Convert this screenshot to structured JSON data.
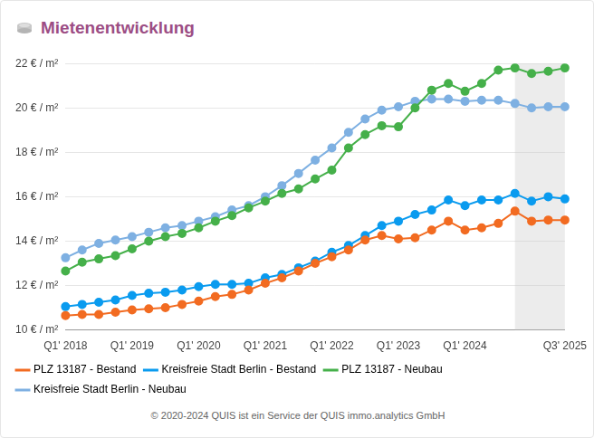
{
  "chart_data": {
    "type": "line",
    "title": "Mietenentwicklung",
    "caption": "© 2020-2024 QUIS ist ein Service der QUIS immo.analytics GmbH",
    "categories": [
      "Q1' 2018",
      null,
      null,
      null,
      "Q1' 2019",
      null,
      null,
      null,
      "Q1' 2020",
      null,
      null,
      null,
      "Q1' 2021",
      null,
      null,
      null,
      "Q1' 2022",
      null,
      null,
      null,
      "Q1' 2023",
      null,
      null,
      null,
      "Q1' 2024",
      null,
      null,
      null,
      null,
      null,
      "Q3' 2025"
    ],
    "series": [
      {
        "name": "PLZ 13187 - Bestand",
        "color": "#f26b21",
        "marker": "circle",
        "values": [
          10.65,
          10.7,
          10.7,
          10.8,
          10.9,
          10.95,
          11.0,
          11.15,
          11.3,
          11.5,
          11.6,
          11.8,
          12.1,
          12.35,
          12.65,
          13.0,
          13.3,
          13.6,
          14.05,
          14.25,
          14.1,
          14.15,
          14.5,
          14.9,
          14.5,
          14.6,
          14.8,
          15.35,
          14.9,
          14.95,
          14.95
        ]
      },
      {
        "name": "Kreisfreie Stadt Berlin - Bestand",
        "color": "#0a9bef",
        "marker": "circle",
        "values": [
          11.05,
          11.15,
          11.25,
          11.35,
          11.55,
          11.65,
          11.7,
          11.8,
          11.95,
          12.05,
          12.05,
          12.1,
          12.35,
          12.5,
          12.8,
          13.1,
          13.5,
          13.8,
          14.25,
          14.7,
          14.9,
          15.2,
          15.4,
          15.85,
          15.6,
          15.85,
          15.85,
          16.15,
          15.8,
          16.0,
          15.9
        ]
      },
      {
        "name": "PLZ 13187 - Neubau",
        "color": "#45b04a",
        "marker": "circle",
        "values": [
          12.65,
          13.05,
          13.2,
          13.35,
          13.65,
          14.0,
          14.2,
          14.35,
          14.6,
          14.9,
          15.15,
          15.5,
          15.8,
          16.15,
          16.35,
          16.8,
          17.2,
          18.2,
          18.8,
          19.2,
          19.15,
          20.0,
          20.8,
          21.1,
          20.75,
          21.1,
          21.7,
          21.8,
          21.55,
          21.65,
          21.8
        ]
      },
      {
        "name": "Kreisfreie Stadt Berlin - Neubau",
        "color": "#7eb0e2",
        "marker": "circle",
        "values": [
          13.25,
          13.6,
          13.9,
          14.05,
          14.2,
          14.4,
          14.6,
          14.7,
          14.9,
          15.1,
          15.4,
          15.6,
          16.0,
          16.5,
          17.05,
          17.65,
          18.2,
          18.9,
          19.5,
          19.9,
          20.05,
          20.3,
          20.4,
          20.4,
          20.3,
          20.35,
          20.35,
          20.2,
          20.0,
          20.05,
          20.05
        ]
      }
    ],
    "highlight": {
      "from": 27,
      "to": 30
    },
    "ylim": [
      10,
      22
    ],
    "yticks": [
      {
        "value": 10,
        "label": "10 € / m²"
      },
      {
        "value": 12,
        "label": "12 € / m²"
      },
      {
        "value": 14,
        "label": "14 € / m²"
      },
      {
        "value": 16,
        "label": "16 € / m²"
      },
      {
        "value": 18,
        "label": "18 € / m²"
      },
      {
        "value": 20,
        "label": "20 € / m²"
      },
      {
        "value": 22,
        "label": "22 € / m²"
      }
    ],
    "grid": true,
    "legend": "bottom"
  }
}
